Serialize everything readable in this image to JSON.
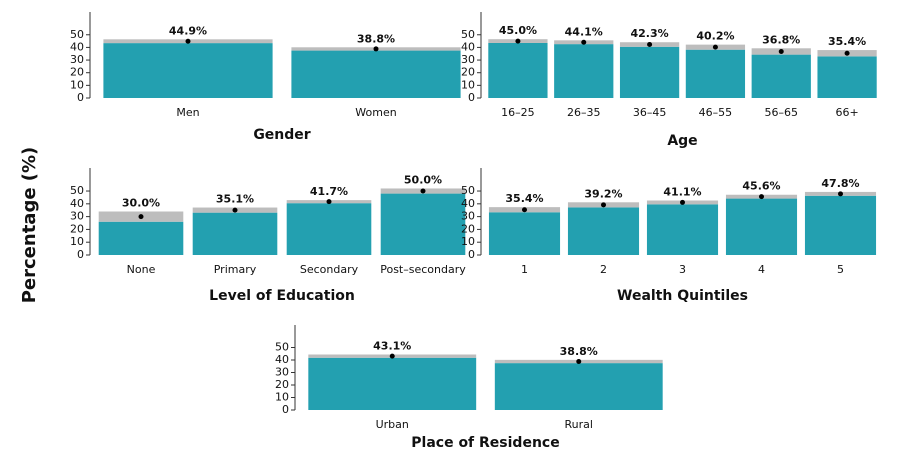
{
  "y_label": "Percentage (%)",
  "chart_data": [
    {
      "type": "bar",
      "x_label": "Gender",
      "categories": [
        "Men",
        "Women"
      ],
      "values": [
        44.9,
        38.8
      ],
      "value_labels": [
        "44.9%",
        "38.8%"
      ],
      "errors": [
        1.5,
        1.3
      ],
      "color": "#23a0b0",
      "error_color": "#bdbdbd",
      "ylim": [
        0,
        68
      ],
      "yticks": [
        0,
        10,
        20,
        30,
        40,
        50
      ]
    },
    {
      "type": "bar",
      "x_label": "Age",
      "categories": [
        "16–25",
        "26–35",
        "36–45",
        "46–55",
        "56–65",
        "66+"
      ],
      "values": [
        45.0,
        44.1,
        42.3,
        40.2,
        36.8,
        35.4
      ],
      "value_labels": [
        "45.0%",
        "44.1%",
        "42.3%",
        "40.2%",
        "36.8%",
        "35.4%"
      ],
      "errors": [
        1.5,
        1.5,
        1.8,
        2,
        2.5,
        2.5
      ],
      "color": "#23a0b0",
      "error_color": "#bdbdbd",
      "ylim": [
        0,
        68
      ],
      "yticks": [
        0,
        10,
        20,
        30,
        40,
        50
      ]
    },
    {
      "type": "bar",
      "x_label": "Level of Education",
      "categories": [
        "None",
        "Primary",
        "Secondary",
        "Post–secondary"
      ],
      "values": [
        30.0,
        35.1,
        41.7,
        50.0
      ],
      "value_labels": [
        "30.0%",
        "35.1%",
        "41.7%",
        "50.0%"
      ],
      "errors": [
        4,
        2,
        1.2,
        2
      ],
      "color": "#23a0b0",
      "error_color": "#bdbdbd",
      "ylim": [
        0,
        68
      ],
      "yticks": [
        0,
        10,
        20,
        30,
        40,
        50
      ]
    },
    {
      "type": "bar",
      "x_label": "Wealth Quintiles",
      "categories": [
        "1",
        "2",
        "3",
        "4",
        "5"
      ],
      "values": [
        35.4,
        39.2,
        41.1,
        45.6,
        47.8
      ],
      "value_labels": [
        "35.4%",
        "39.2%",
        "41.1%",
        "45.6%",
        "47.8%"
      ],
      "errors": [
        2,
        2,
        1.5,
        1.5,
        1.5
      ],
      "color": "#23a0b0",
      "error_color": "#bdbdbd",
      "ylim": [
        0,
        68
      ],
      "yticks": [
        0,
        10,
        20,
        30,
        40,
        50
      ]
    },
    {
      "type": "bar",
      "x_label": "Place of Residence",
      "categories": [
        "Urban",
        "Rural"
      ],
      "values": [
        43.1,
        38.8
      ],
      "value_labels": [
        "43.1%",
        "38.8%"
      ],
      "errors": [
        1.3,
        1.3
      ],
      "color": "#23a0b0",
      "error_color": "#bdbdbd",
      "ylim": [
        0,
        68
      ],
      "yticks": [
        0,
        10,
        20,
        30,
        40,
        50
      ]
    }
  ]
}
